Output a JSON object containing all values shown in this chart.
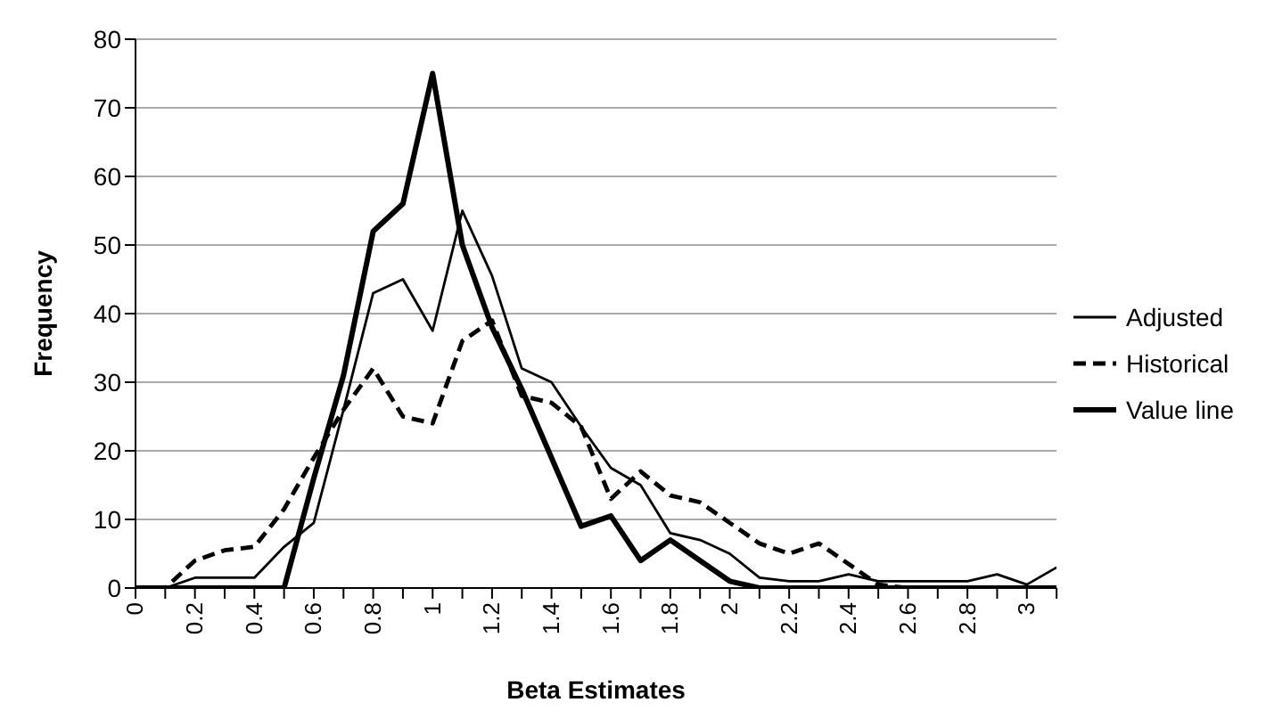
{
  "chart_data": {
    "type": "line",
    "xlabel": "Beta Estimates",
    "ylabel": "Frequency",
    "categories": [
      "0",
      null,
      "0.2",
      null,
      "0.4",
      null,
      "0.6",
      null,
      "0.8",
      null,
      "1",
      null,
      "1.2",
      null,
      "1.4",
      null,
      "1.6",
      null,
      "1.8",
      null,
      "2",
      null,
      "2.2",
      null,
      "2.4",
      null,
      "2.6",
      null,
      "2.8",
      null,
      "3",
      null
    ],
    "series": [
      {
        "name": "Adjusted",
        "color": "#000000",
        "line_style": "solid",
        "values": [
          0,
          0,
          1.5,
          1.5,
          1.5,
          6,
          9.5,
          26,
          43,
          45,
          37.5,
          55,
          45.5,
          32,
          30,
          23.5,
          17.5,
          15,
          8,
          7,
          5,
          1.5,
          1,
          1,
          2,
          1,
          1,
          1,
          1,
          2,
          0.5,
          3
        ]
      },
      {
        "name": "Historical",
        "color": "#000000",
        "line_style": "dashed",
        "values": [
          0,
          0,
          4,
          5.5,
          6,
          11.5,
          19,
          26,
          32,
          25,
          24,
          36,
          39,
          28,
          27,
          23.5,
          13,
          17,
          13.5,
          12.5,
          9.5,
          6.5,
          5,
          6.5,
          3.5,
          0.5,
          0,
          0,
          0,
          0,
          0,
          0
        ]
      },
      {
        "name": "Value line",
        "color": "#000000",
        "line_style": "solid",
        "values": [
          0,
          0,
          0,
          0,
          0,
          0,
          16,
          31,
          52,
          56,
          75,
          50,
          38,
          29,
          19,
          9,
          10.5,
          4,
          7,
          4,
          1,
          0,
          0,
          0,
          0,
          0,
          0,
          0,
          0,
          0,
          0,
          0
        ]
      }
    ],
    "ylim": [
      0,
      80
    ],
    "yticks": [
      0,
      10,
      20,
      30,
      40,
      50,
      60,
      70,
      80
    ],
    "grid": "y",
    "legend": "right",
    "marker": "none"
  }
}
